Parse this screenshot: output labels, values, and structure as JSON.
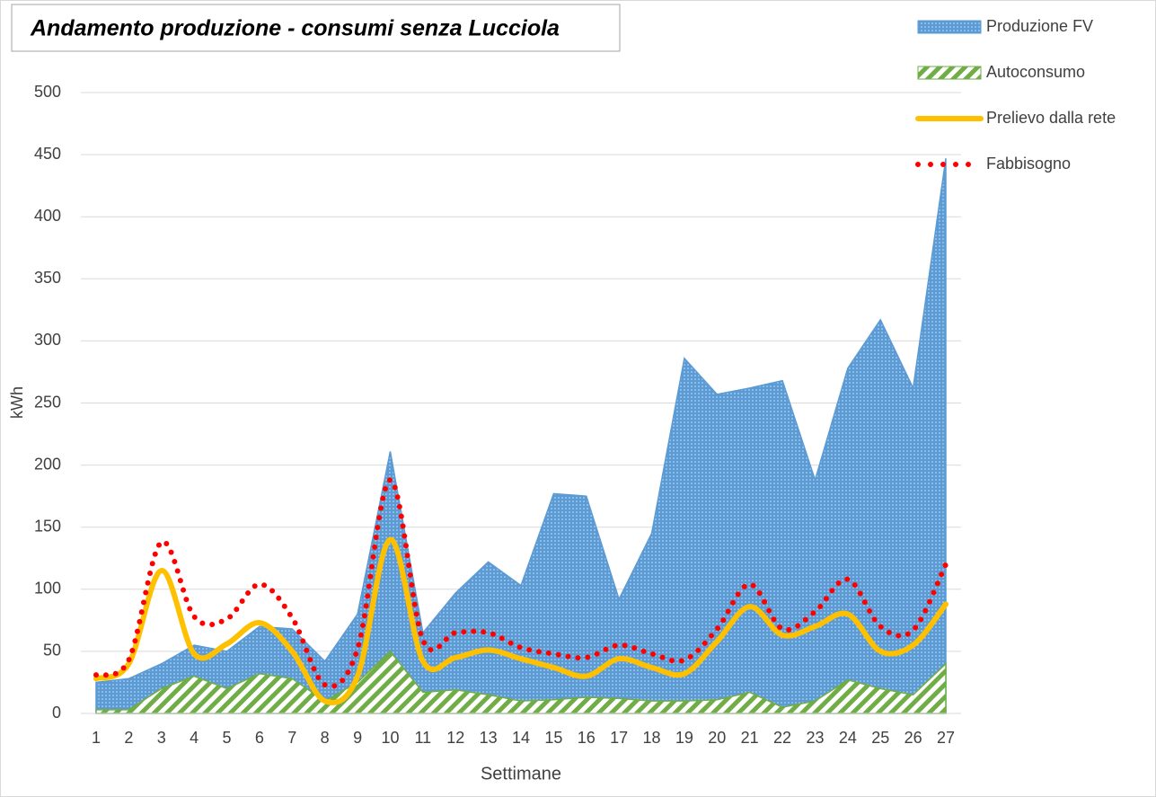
{
  "chart_data": {
    "type": "area-line",
    "title": "Andamento produzione - consumi senza Lucciola",
    "x_label": "Settimane",
    "y_label": "kWh",
    "categories": [
      "1",
      "2",
      "3",
      "4",
      "5",
      "6",
      "7",
      "8",
      "9",
      "10",
      "11",
      "12",
      "13",
      "14",
      "15",
      "16",
      "17",
      "18",
      "19",
      "20",
      "21",
      "22",
      "23",
      "24",
      "25",
      "26",
      "27"
    ],
    "ylim": [
      0,
      500
    ],
    "yticks": [
      0,
      50,
      100,
      150,
      200,
      250,
      300,
      350,
      400,
      450,
      500
    ],
    "grid": true,
    "legend": "right",
    "series": [
      {
        "name": "Produzione FV",
        "kind": "area",
        "color": "#5b9bd5",
        "values": [
          25,
          28,
          40,
          55,
          50,
          70,
          68,
          42,
          80,
          211,
          65,
          97,
          122,
          103,
          177,
          175,
          92,
          145,
          286,
          257,
          262,
          268,
          188,
          278,
          317,
          262,
          447
        ]
      },
      {
        "name": "Autoconsumo",
        "kind": "area",
        "color": "#70ad47",
        "values": [
          3,
          3,
          20,
          30,
          20,
          32,
          28,
          10,
          25,
          50,
          17,
          19,
          15,
          10,
          11,
          13,
          12,
          10,
          10,
          11,
          17,
          5,
          10,
          27,
          20,
          15,
          40
        ]
      },
      {
        "name": "Prelievo dalla rete",
        "kind": "line",
        "color": "#ffc000",
        "values": [
          28,
          40,
          115,
          48,
          56,
          73,
          50,
          10,
          30,
          140,
          42,
          45,
          51,
          44,
          37,
          30,
          44,
          37,
          32,
          58,
          86,
          63,
          70,
          80,
          50,
          55,
          88
        ]
      },
      {
        "name": "Fabbisogno",
        "kind": "dotted",
        "color": "#ff0000",
        "values": [
          31,
          43,
          138,
          78,
          76,
          104,
          77,
          23,
          52,
          188,
          59,
          65,
          65,
          53,
          48,
          45,
          55,
          48,
          43,
          68,
          104,
          68,
          82,
          108,
          70,
          67,
          120
        ]
      }
    ]
  }
}
